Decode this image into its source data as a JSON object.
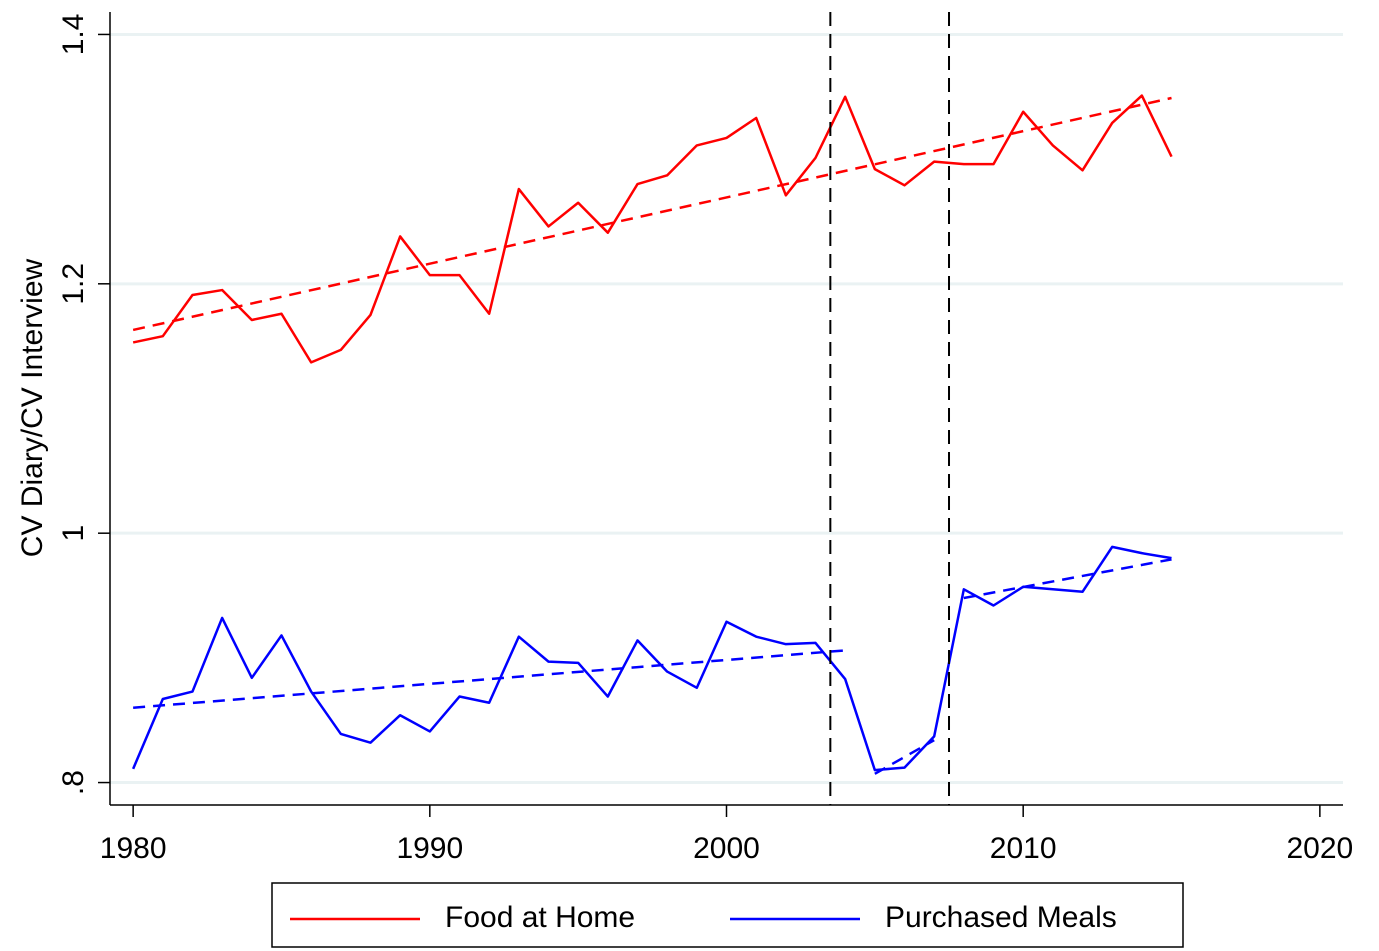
{
  "chart_data": {
    "type": "line",
    "y_label": "CV Diary/CV Interview",
    "xlim": [
      1979.22,
      2020.78
    ],
    "ylim": [
      0.782,
      1.418
    ],
    "xticks": [
      1980,
      1990,
      2000,
      2010,
      2020
    ],
    "yticks": [
      {
        "value": 0.8,
        "label": ".8"
      },
      1,
      1.2,
      1.4
    ],
    "grid": true,
    "legend": "bottom",
    "x": [
      1980,
      1981,
      1982,
      1983,
      1984,
      1985,
      1986,
      1987,
      1988,
      1989,
      1990,
      1991,
      1992,
      1993,
      1994,
      1995,
      1996,
      1997,
      1998,
      1999,
      2000,
      2001,
      2002,
      2003,
      2004,
      2005,
      2006,
      2007,
      2008,
      2009,
      2010,
      2011,
      2012,
      2013,
      2014,
      2015
    ],
    "series": [
      {
        "name": "Food at Home",
        "color": "#ff0000",
        "values": [
          1.153,
          1.158,
          1.191,
          1.195,
          1.171,
          1.176,
          1.137,
          1.147,
          1.175,
          1.238,
          1.207,
          1.207,
          1.176,
          1.276,
          1.246,
          1.265,
          1.241,
          1.28,
          1.287,
          1.311,
          1.317,
          1.333,
          1.271,
          1.301,
          1.35,
          1.292,
          1.279,
          1.298,
          1.296,
          1.296,
          1.338,
          1.311,
          1.291,
          1.329,
          1.351,
          1.302
        ]
      },
      {
        "name": "Purchased Meals",
        "color": "#0000ff",
        "values": [
          0.811,
          0.867,
          0.873,
          0.932,
          0.884,
          0.918,
          0.873,
          0.839,
          0.832,
          0.854,
          0.841,
          0.869,
          0.864,
          0.917,
          0.897,
          0.896,
          0.869,
          0.914,
          0.889,
          0.876,
          0.929,
          0.917,
          0.911,
          0.912,
          0.883,
          0.81,
          0.812,
          0.837,
          0.955,
          0.942,
          0.957,
          0.955,
          0.953,
          0.989,
          0.984,
          0.98
        ]
      }
    ],
    "trend_lines": [
      {
        "color": "#ff0000",
        "x": [
          1980,
          2015
        ],
        "values": [
          1.163,
          1.349
        ]
      },
      {
        "color": "#0000ff",
        "x": [
          1980,
          2004
        ],
        "values": [
          0.86,
          0.906
        ]
      },
      {
        "color": "#0000ff",
        "x": [
          2005,
          2007
        ],
        "values": [
          0.807,
          0.834
        ]
      },
      {
        "color": "#0000ff",
        "x": [
          2008,
          2015
        ],
        "values": [
          0.948,
          0.979
        ]
      }
    ],
    "reference_lines_x": [
      2003.5,
      2007.5
    ]
  }
}
